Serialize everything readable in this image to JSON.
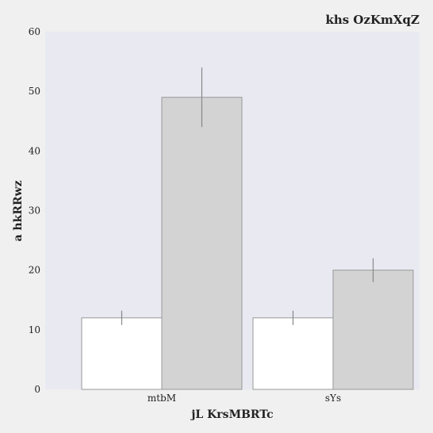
{
  "chart_data": {
    "type": "bar",
    "title": "khs OzKmXqZ",
    "xlabel": "jL  KrsMBRTc",
    "ylabel": "a hkRRwz",
    "categories": [
      "mtbM",
      "sYs"
    ],
    "series": [
      {
        "values": [
          12,
          12
        ],
        "error": [
          1.2,
          1.2
        ],
        "color": "#ffffff"
      },
      {
        "values": [
          49,
          20
        ],
        "error": [
          5,
          2
        ],
        "color": "#d3d3d3"
      }
    ],
    "ylim": [
      0,
      60
    ],
    "yticks": [
      0,
      10,
      20,
      30,
      40,
      50,
      60
    ],
    "grid": false,
    "legend": "none",
    "plot_background": "#e9e9f2",
    "figure_background": "#f0f0f0",
    "bar_edge_color": "#999999",
    "error_bar_color": "#888888"
  }
}
